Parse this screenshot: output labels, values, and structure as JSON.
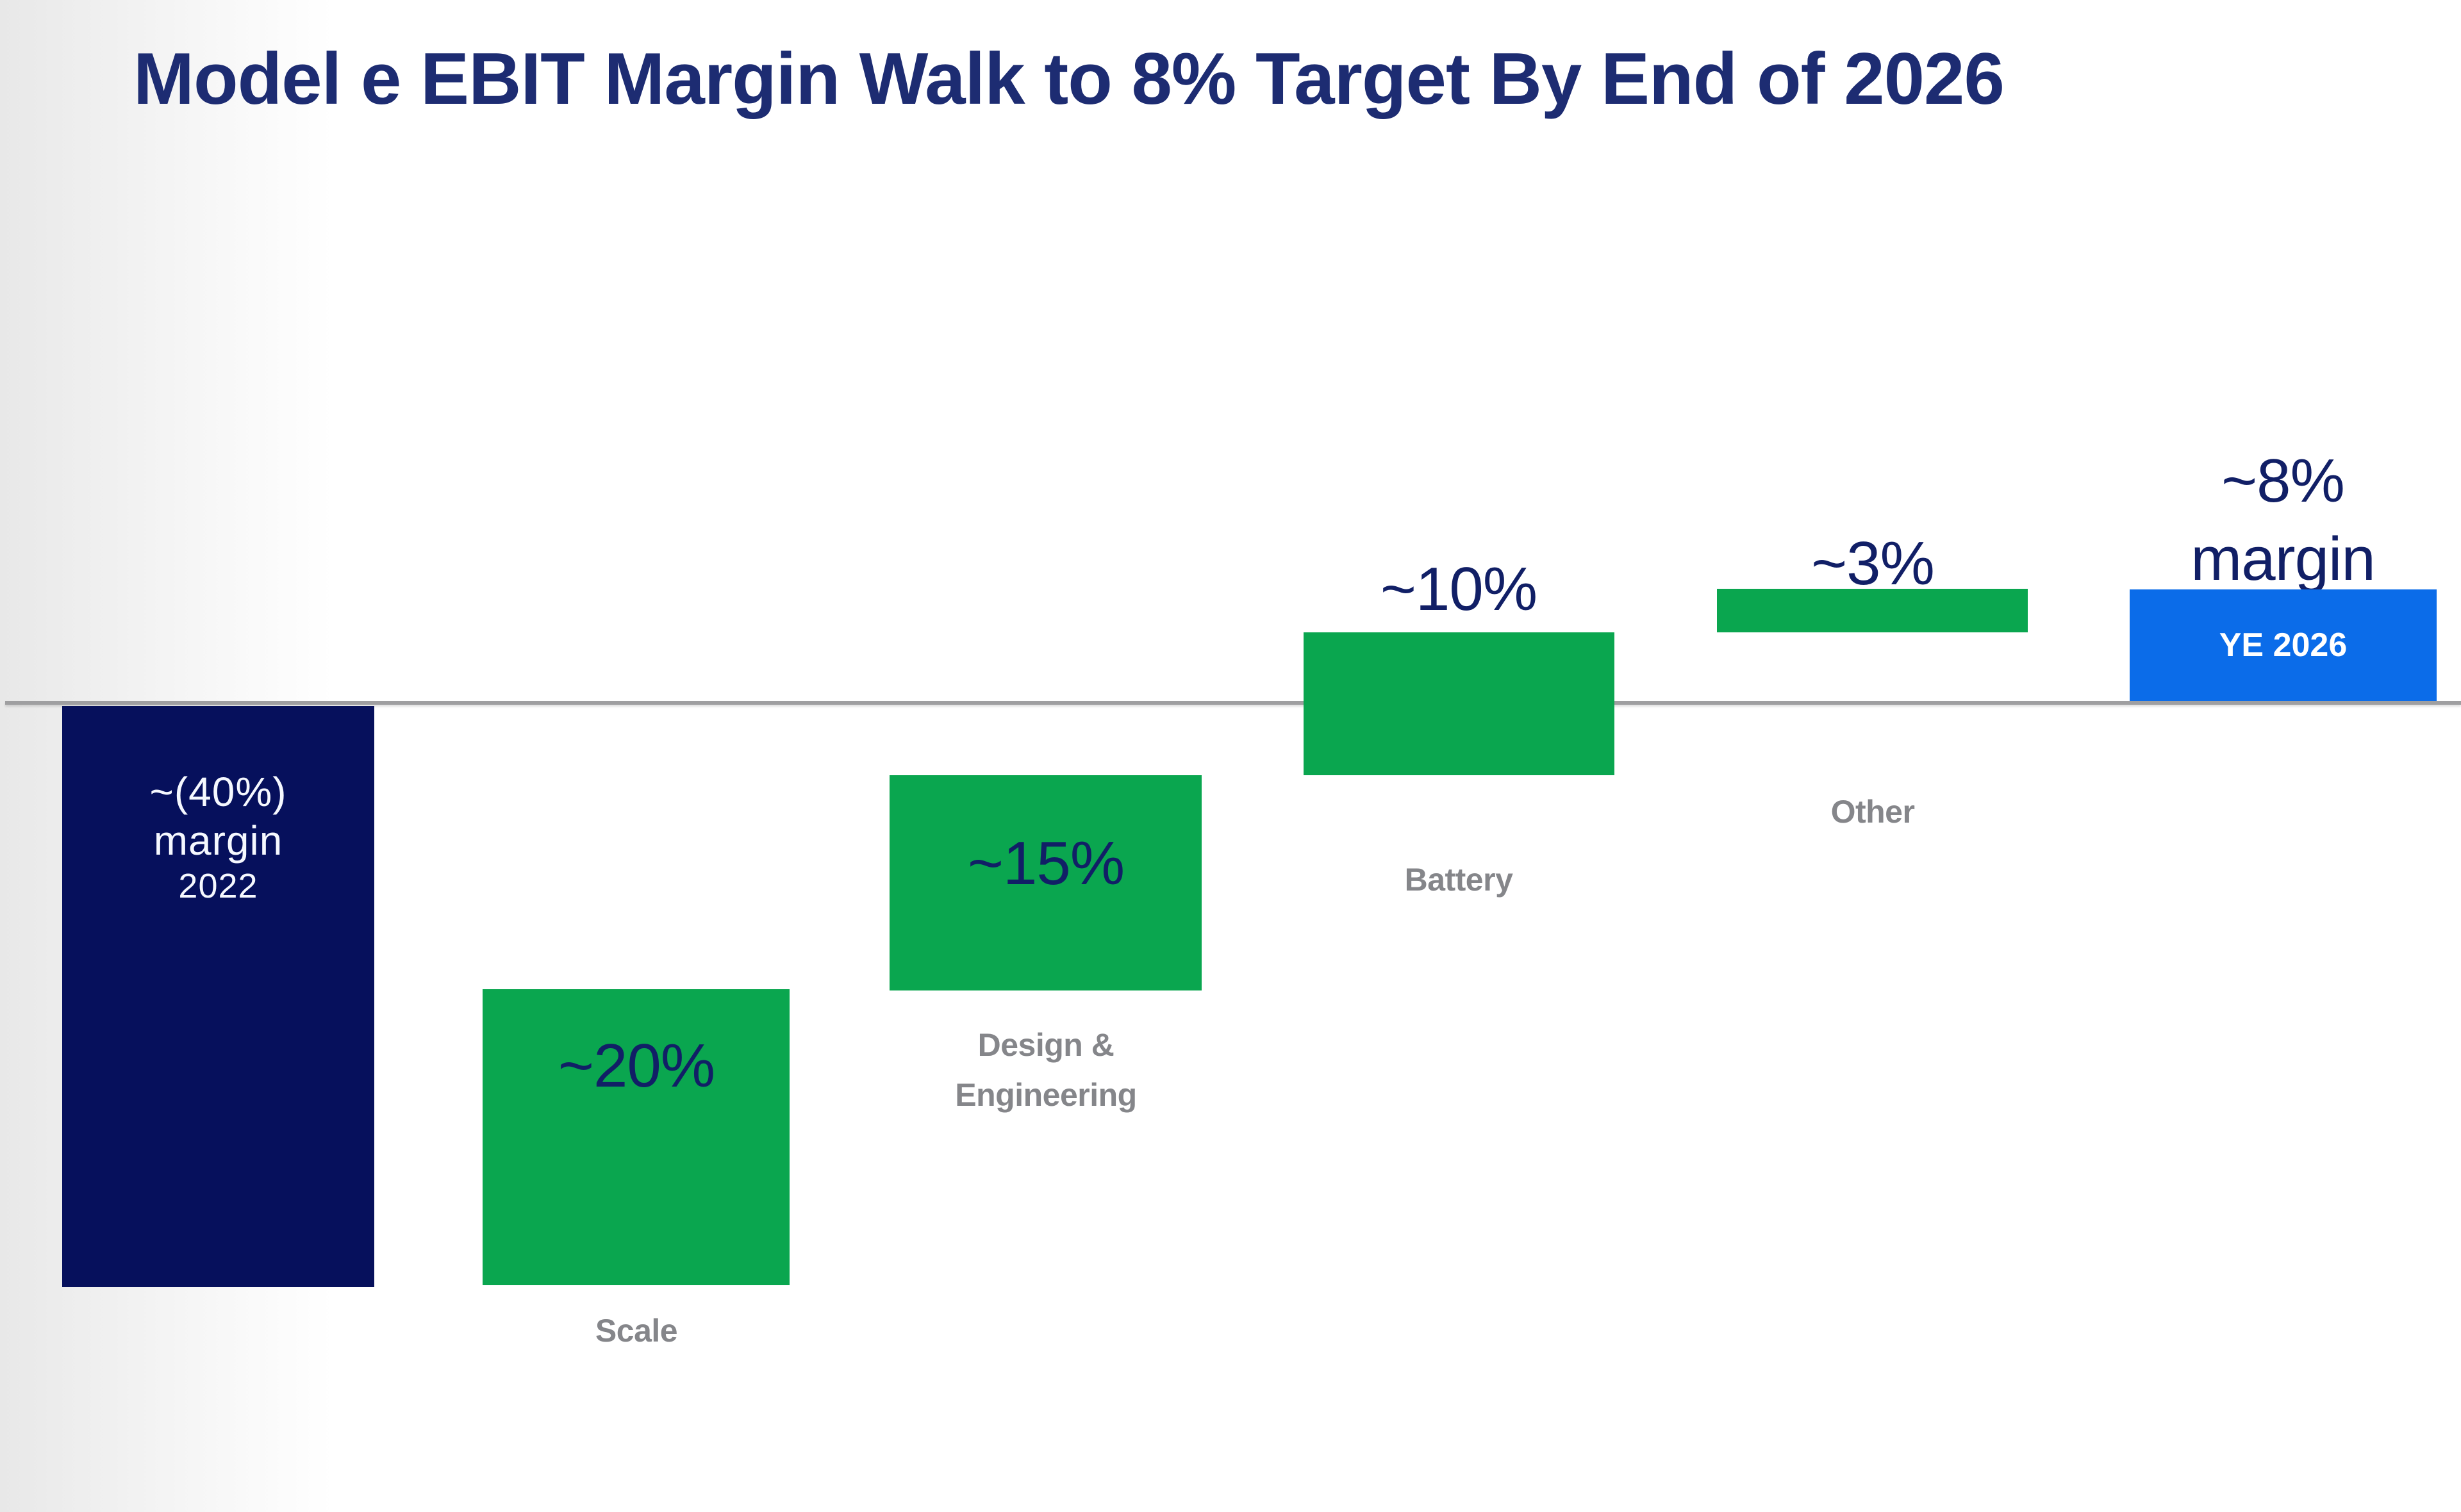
{
  "page": {
    "title": "Model e EBIT Margin Walk to 8% Target By End of 2026"
  },
  "colors": {
    "title_navy": "#1d2c72",
    "bar_navy": "#06105c",
    "bar_green": "#0aa64f",
    "bar_blue": "#0b6ce9",
    "value_navy": "#111f66",
    "category_gray": "#85868a",
    "baseline_gray": "#9f9fa1",
    "bar_text_white": "#ffffff"
  },
  "chart_data": {
    "type": "waterfall",
    "title": "Model e EBIT Margin Walk to 8% Target By End of 2026",
    "unit": "EBIT margin %",
    "ylim": [
      -45,
      12
    ],
    "baseline_value": 0,
    "grid": false,
    "legend": false,
    "categories": [
      "2022",
      "Scale",
      "Design & Engineering",
      "Battery",
      "Other",
      "YE 2026"
    ],
    "bars": [
      {
        "category": "2022",
        "role": "start-total",
        "value": -40,
        "start": 0,
        "end": -40,
        "color_key": "bar_navy",
        "label_lines": [
          "~(40%)",
          "margin",
          "2022"
        ]
      },
      {
        "category": "Scale",
        "role": "increase",
        "value": 20,
        "start": -40,
        "end": -20,
        "color_key": "bar_green",
        "value_label": "~20%"
      },
      {
        "category": "Design & Engineering",
        "category_lines": [
          "Design &",
          "Engineering"
        ],
        "role": "increase",
        "value": 15,
        "start": -20,
        "end": -5,
        "color_key": "bar_green",
        "value_label": "~15%"
      },
      {
        "category": "Battery",
        "role": "increase",
        "value": 10,
        "start": -5,
        "end": 5,
        "color_key": "bar_green",
        "value_label": "~10%"
      },
      {
        "category": "Other",
        "role": "increase",
        "value": 3,
        "start": 5,
        "end": 8,
        "color_key": "bar_green",
        "value_label": "~3%"
      },
      {
        "category": "YE 2026",
        "role": "end-total",
        "value": 8,
        "start": 0,
        "end": 8,
        "color_key": "bar_blue",
        "value_label": "~8%",
        "value_label_line2": "margin",
        "bar_text": "YE 2026"
      }
    ]
  }
}
